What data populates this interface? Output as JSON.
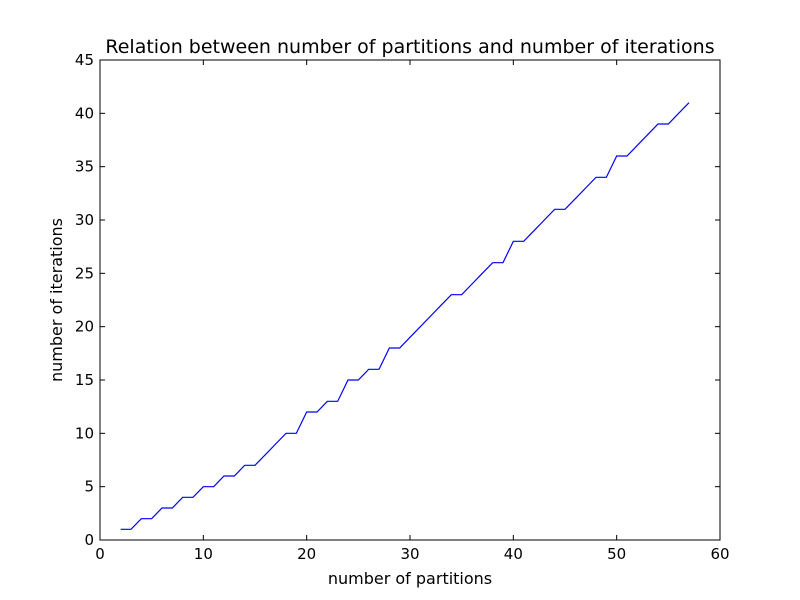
{
  "chart_data": {
    "type": "line",
    "title": "Relation between number of partitions and number of iterations",
    "xlabel": "number of partitions",
    "ylabel": "number of iterations",
    "xlim": [
      0,
      60
    ],
    "ylim": [
      0,
      45
    ],
    "xticks": [
      0,
      10,
      20,
      30,
      40,
      50,
      60
    ],
    "yticks": [
      0,
      5,
      10,
      15,
      20,
      25,
      30,
      35,
      40,
      45
    ],
    "grid": false,
    "line_color": "#0000ff",
    "series": [
      {
        "x": [
          2,
          3,
          4,
          5,
          6,
          7,
          8,
          9,
          10,
          11,
          12,
          13,
          14,
          15,
          16,
          17,
          18,
          19,
          20,
          21,
          22,
          23,
          24,
          25,
          26,
          27,
          28,
          29,
          30,
          31,
          32,
          33,
          34,
          35,
          36,
          37,
          38,
          39,
          40,
          41,
          42,
          43,
          44,
          45,
          46,
          47,
          48,
          49,
          50,
          51,
          52,
          53,
          54,
          55,
          56,
          57
        ],
        "values": [
          1,
          1,
          2,
          2,
          3,
          3,
          4,
          4,
          5,
          5,
          6,
          6,
          7,
          7,
          8,
          9,
          10,
          10,
          12,
          12,
          13,
          13,
          15,
          15,
          16,
          16,
          18,
          18,
          19,
          20,
          21,
          22,
          23,
          23,
          24,
          25,
          26,
          26,
          28,
          28,
          29,
          30,
          31,
          31,
          32,
          33,
          34,
          34,
          36,
          36,
          37,
          38,
          39,
          39,
          40,
          41
        ]
      }
    ]
  }
}
